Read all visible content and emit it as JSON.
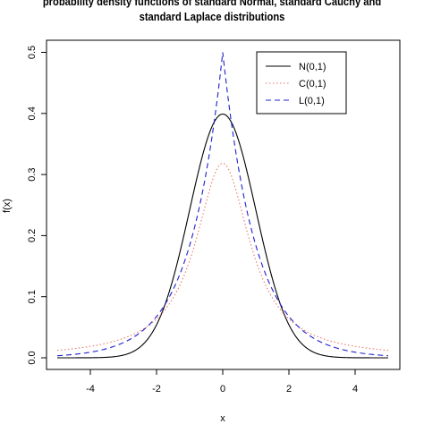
{
  "chart_data": {
    "type": "line",
    "title_lines": [
      "probability density functions of standard Normal, standard Cauchy and",
      "standard Laplace distributions"
    ],
    "xlabel": "x",
    "ylabel": "f(x)",
    "xlim": [
      -5,
      5
    ],
    "ylim": [
      0,
      0.5
    ],
    "xticks": [
      "-4",
      "-2",
      "0",
      "2",
      "4"
    ],
    "xtick_values": [
      -4,
      -2,
      0,
      2,
      4
    ],
    "yticks": [
      "0.0",
      "0.1",
      "0.2",
      "0.3",
      "0.4",
      "0.5"
    ],
    "ytick_values": [
      0,
      0.1,
      0.2,
      0.3,
      0.4,
      0.5
    ],
    "legend_position": "top-right",
    "series": [
      {
        "name": "N(0,1)",
        "distribution": "normal",
        "color": "#000000",
        "style": "solid"
      },
      {
        "name": "C(0,1)",
        "distribution": "cauchy",
        "color": "#e8796b",
        "style": "dotted"
      },
      {
        "name": "L(0,1)",
        "distribution": "laplace",
        "color": "#2020d0",
        "style": "dashed"
      }
    ]
  }
}
